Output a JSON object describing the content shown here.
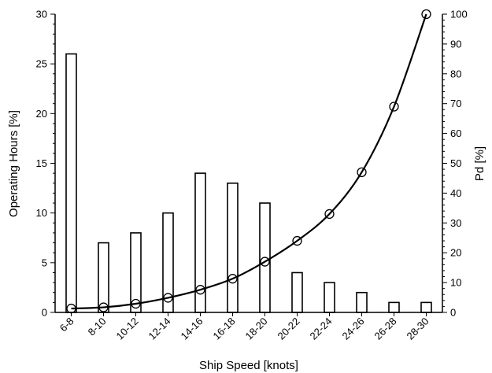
{
  "chart_data": {
    "type": "bar",
    "categories": [
      "6-8",
      "8-10",
      "10-12",
      "12-14",
      "14-16",
      "16-18",
      "18-20",
      "20-22",
      "22-24",
      "24-26",
      "26-28",
      "28-30"
    ],
    "series": [
      {
        "kind": "bar",
        "axis": "left",
        "values": [
          26,
          7,
          8,
          10,
          14,
          13,
          11,
          4,
          3,
          2,
          1,
          1
        ]
      },
      {
        "kind": "line-markers",
        "axis": "right",
        "marker": "open-circle",
        "values": [
          1.3,
          1.7,
          2.9,
          4.9,
          7.6,
          11.3,
          17,
          24,
          33,
          47,
          69,
          100
        ]
      }
    ],
    "xlabel": "Ship Speed [knots]",
    "ylabel": "Operating Hours [%]",
    "y2label": "Pd [%]",
    "ylim": [
      0,
      30
    ],
    "y2lim": [
      0,
      100
    ],
    "yticks": [
      0,
      5,
      10,
      15,
      20,
      25,
      30
    ],
    "y2ticks": [
      0,
      10,
      20,
      30,
      40,
      50,
      60,
      70,
      80,
      90,
      100
    ],
    "grid": false,
    "legend": "none",
    "colors": {
      "bar_fill": "#ffffff",
      "stroke": "#000000"
    }
  }
}
